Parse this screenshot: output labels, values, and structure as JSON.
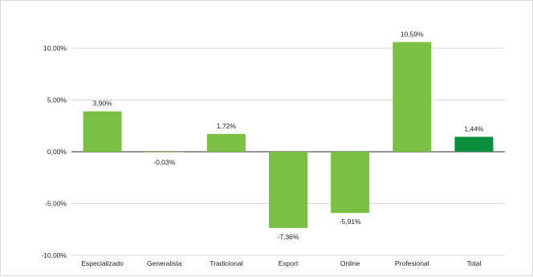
{
  "chart_data": {
    "type": "bar",
    "categories": [
      "Especializado",
      "Generalista",
      "Tradicional",
      "Export",
      "Online",
      "Profesional",
      "Total"
    ],
    "values": [
      3.9,
      -0.03,
      1.72,
      -7.36,
      -5.91,
      10.59,
      1.44
    ],
    "data_labels": [
      "3,90%",
      "-0,03%",
      "1,72%",
      "-7,36%",
      "-5,91%",
      "10,59%",
      "1,44%"
    ],
    "y_ticks": [
      10,
      5,
      0,
      -5,
      -10
    ],
    "y_tick_labels": [
      "10,00%",
      "5,00%",
      "0,00%",
      "-5,00%",
      "-10,00%"
    ],
    "ylim": [
      -10,
      10
    ],
    "title": "",
    "xlabel": "",
    "ylabel": "",
    "grid": true,
    "legend": "none",
    "colors": {
      "bar": "#7ac143",
      "highlight_bar": "#0a8f3d",
      "grid": "#d9d9d9",
      "zero_line": "#555555"
    },
    "highlight_category": "Total"
  }
}
